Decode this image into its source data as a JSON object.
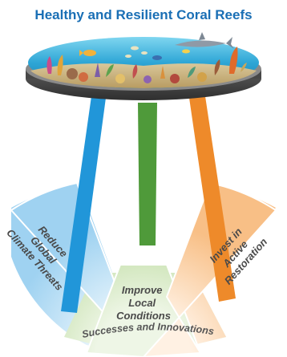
{
  "title": "Healthy and Resilient Coral Reefs",
  "segments": {
    "left": [
      "Reduce",
      "Global",
      "Climate Threats"
    ],
    "center": [
      "Improve",
      "Local",
      "Conditions"
    ],
    "right": [
      "Invest in",
      "Active",
      "Restoration"
    ]
  },
  "arc_text": "Successes and Innovations",
  "colors": {
    "title": "#1a6fb5",
    "leg_left": "#2196d9",
    "leg_center": "#4f9a3a",
    "leg_right": "#ee8a2a",
    "segment_left": "#bfe0f5",
    "segment_center": "#cde2b4",
    "segment_right": "#fbd3aa",
    "tabletop_rim": "#4a4a4a",
    "water": "#3fb6e0"
  }
}
